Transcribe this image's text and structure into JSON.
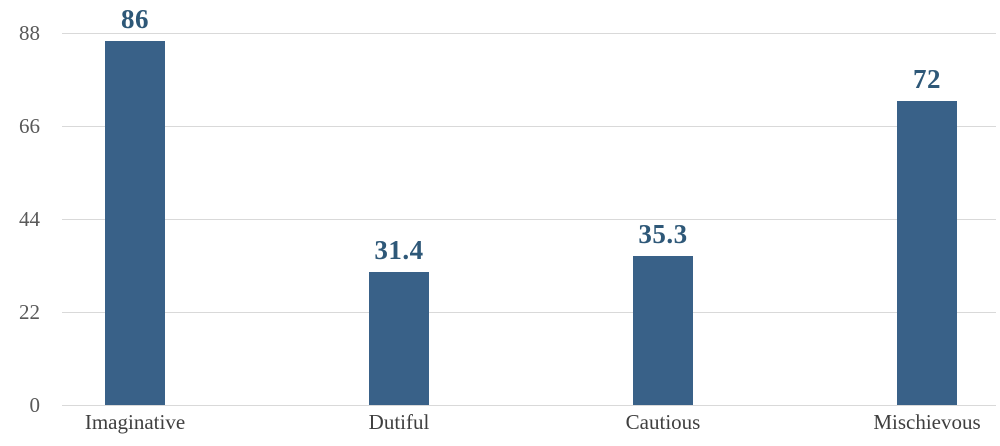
{
  "chart_data": {
    "type": "bar",
    "categories": [
      "Imaginative",
      "Dutiful",
      "Cautious",
      "Mischievous"
    ],
    "values": [
      86,
      31.4,
      35.3,
      72
    ],
    "value_labels": [
      "86",
      "31.4",
      "35.3",
      "72"
    ],
    "title": "",
    "xlabel": "",
    "ylabel": "",
    "ylim": [
      0,
      88
    ],
    "yticks": [
      0,
      22,
      44,
      66,
      88
    ],
    "ytick_labels": [
      "0",
      "22",
      "44",
      "66",
      "88"
    ],
    "grid": true,
    "legend": false,
    "colors": {
      "bar": "#396188",
      "value_label": "#2E5878",
      "ytick_label": "#595959",
      "category_label": "#3F3F3F",
      "gridline": "#D9D9D9"
    }
  }
}
